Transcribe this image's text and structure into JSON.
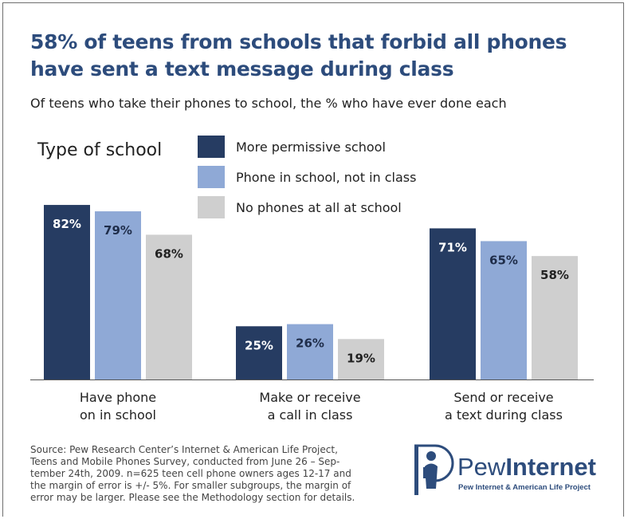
{
  "title_lines": [
    "58% of teens from schools that forbid all phones",
    "have sent a text message during class"
  ],
  "subtitle": "Of teens who take their phones to school, the % who have ever done each",
  "colors": {
    "title": "#2d4c7c",
    "dark": "#263c62",
    "medium": "#8fa9d6",
    "light": "#cfcfcf"
  },
  "chart_data": {
    "type": "bar",
    "legend_title": "Type of school",
    "legend_position": "top",
    "grid": false,
    "ylim": [
      0,
      100
    ],
    "categories": [
      [
        "Have phone",
        "on in school"
      ],
      [
        "Make or receive",
        "a call in class"
      ],
      [
        "Send or receive",
        "a text during class"
      ]
    ],
    "series": [
      {
        "name": "More permissive school",
        "values": [
          82,
          25,
          71
        ],
        "labels": [
          "82%",
          "25%",
          "71%"
        ],
        "color": "#263c62",
        "label_color": "#ffffff"
      },
      {
        "name": "Phone in school, not in class",
        "values": [
          79,
          26,
          65
        ],
        "labels": [
          "79%",
          "26%",
          "65%"
        ],
        "color": "#8fa9d6",
        "label_color": "#1f2d4a"
      },
      {
        "name": "No phones at all at school",
        "values": [
          68,
          19,
          58
        ],
        "labels": [
          "68%",
          "19%",
          "58%"
        ],
        "color": "#cfcfcf",
        "label_color": "#222222"
      }
    ]
  },
  "source_lines": [
    "Source: Pew Research Center’s Internet & American Life Project,",
    "Teens and Mobile Phones Survey, conducted from June 26 – Sep-",
    "tember 24th, 2009. n=625 teen cell phone owners ages 12-17 and",
    "the margin of error is +/- 5%. For smaller subgroups, the margin of",
    "error may be larger. Please see the Methodology section for details."
  ],
  "logo": {
    "name_light": "Pew",
    "name_bold": "Internet",
    "tagline": "Pew Internet & American Life Project"
  }
}
